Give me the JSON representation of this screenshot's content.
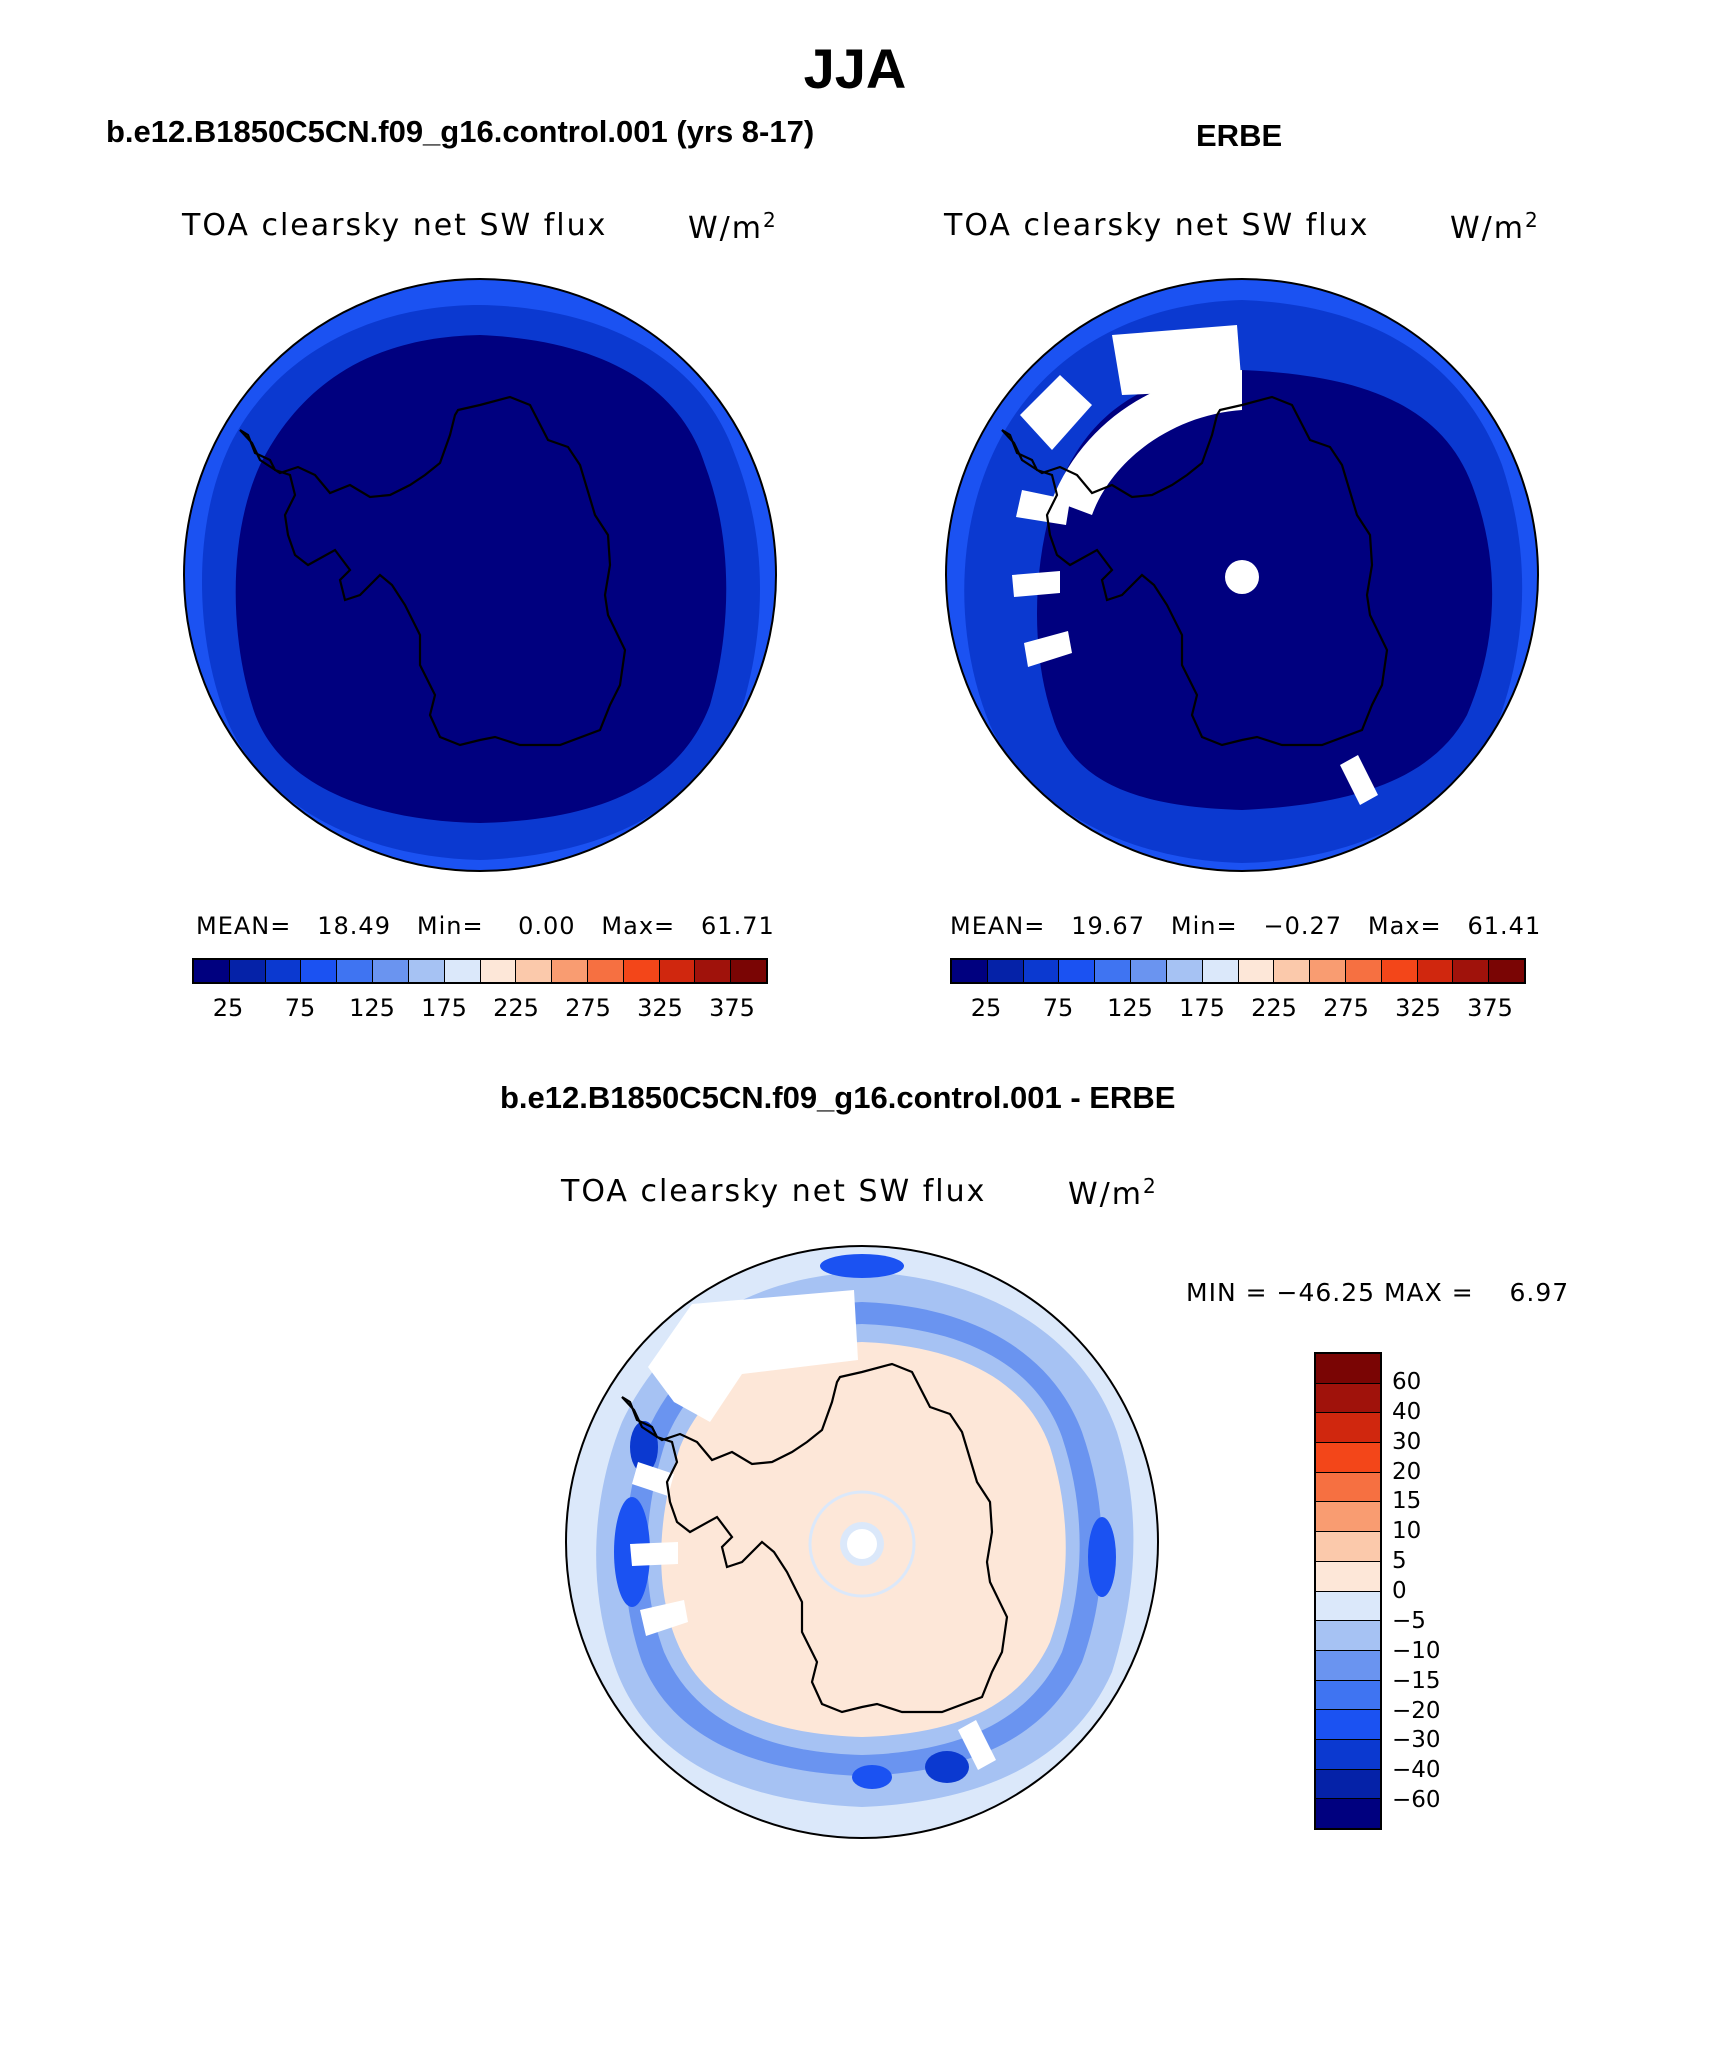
{
  "main_title": "JJA",
  "panels": [
    {
      "title": "b.e12.B1850C5CN.f09_g16.control.001 (yrs 8-17)",
      "variable": "TOA clearsky net SW flux",
      "units_base": "W/m",
      "units_exp": "2",
      "mean_label": "MEAN=",
      "mean_value": "18.49",
      "min_label": "Min=",
      "min_value": "0.00",
      "max_label": "Max=",
      "max_value": "61.71"
    },
    {
      "title": "ERBE",
      "variable": "TOA clearsky net SW flux",
      "units_base": "W/m",
      "units_exp": "2",
      "mean_label": "MEAN=",
      "mean_value": "19.67",
      "min_label": "Min=",
      "min_value": "−0.27",
      "max_label": "Max=",
      "max_value": "61.41"
    }
  ],
  "abs_colorbar": {
    "colors": [
      "#00007f",
      "#0522a8",
      "#0b39d0",
      "#1b52f2",
      "#3f74f2",
      "#6a94f0",
      "#a6c2f3",
      "#dbe8fa",
      "#fde7d8",
      "#fbc9ab",
      "#f99c71",
      "#f67041",
      "#f34619",
      "#d0270e",
      "#a0120b",
      "#7a0504"
    ],
    "ticks": [
      "25",
      "75",
      "125",
      "175",
      "225",
      "275",
      "325",
      "375"
    ]
  },
  "diff_panel": {
    "title": "b.e12.B1850C5CN.f09_g16.control.001 - ERBE",
    "variable": "TOA clearsky net SW flux",
    "units_base": "W/m",
    "units_exp": "2",
    "min_label": "MIN =",
    "min_value": "−46.25",
    "max_label": "MAX =",
    "max_value": "6.97"
  },
  "diff_colorbar": {
    "colors": [
      "#7a0504",
      "#a0120b",
      "#d0270e",
      "#f34619",
      "#f67041",
      "#f99c71",
      "#fbc9ab",
      "#fde7d8",
      "#dbe8fa",
      "#a6c2f3",
      "#6a94f0",
      "#3f74f2",
      "#1b52f2",
      "#0b39d0",
      "#0522a8",
      "#00007f"
    ],
    "ticks": [
      "60",
      "40",
      "30",
      "20",
      "15",
      "10",
      "5",
      "0",
      "−5",
      "−10",
      "−15",
      "−20",
      "−30",
      "−40",
      "−60"
    ]
  },
  "map_colors": {
    "deep": "#00007f",
    "mid": "#0522a8",
    "edge": "#0b39d0",
    "outer": "#1b52f2",
    "diff_land": "#fde7d8",
    "diff_ocean": "#dbe8fa",
    "diff_blue": "#a6c2f3",
    "diff_med": "#6a94f0",
    "diff_strong": "#1b52f2",
    "diff_deep": "#0b39d0",
    "missing": "#ffffff",
    "coast": "#000000"
  }
}
